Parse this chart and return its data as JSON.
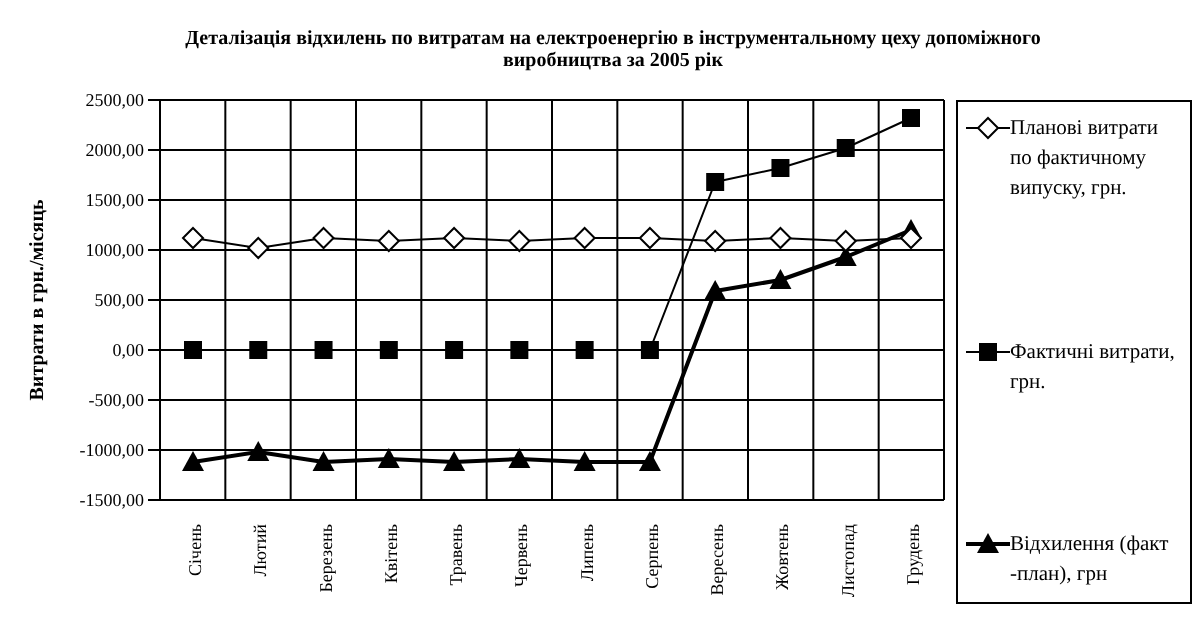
{
  "chart_data": {
    "type": "line",
    "title": "Деталізація відхилень по витратам на електроенергію в інструментальному цеху допоміжного виробництва за 2005 рік",
    "ylabel": "Витрати в грн./місяць",
    "categories": [
      "Січень",
      "Лютий",
      "Березень",
      "Квітень",
      "Травень",
      "Червень",
      "Липень",
      "Серпень",
      "Вересень",
      "Жовтень",
      "Листопад",
      "Грудень"
    ],
    "series": [
      {
        "name": "Планові витрати по фактичному випуску, грн.",
        "color": "#000000",
        "marker": "diamond",
        "values": [
          1120,
          1020,
          1120,
          1090,
          1120,
          1090,
          1120,
          1120,
          1090,
          1120,
          1090,
          1120
        ]
      },
      {
        "name": "Фактичні витрати, грн.",
        "color": "#000000",
        "marker": "square",
        "values": [
          0,
          0,
          0,
          0,
          0,
          0,
          0,
          0,
          1680,
          1820,
          2020,
          2320
        ]
      },
      {
        "name": "Відхилення (факт -план), грн",
        "color": "#000000",
        "marker": "triangle",
        "values": [
          -1120,
          -1020,
          -1120,
          -1090,
          -1120,
          -1090,
          -1120,
          -1120,
          590,
          700,
          930,
          1200
        ]
      }
    ],
    "ylim": [
      -1500,
      2500
    ],
    "yticks": [
      {
        "value": -1500,
        "label": "-1500,00"
      },
      {
        "value": -1000,
        "label": "-1000,00"
      },
      {
        "value": -500,
        "label": "-500,00"
      },
      {
        "value": 0,
        "label": "0,00"
      },
      {
        "value": 500,
        "label": "500,00"
      },
      {
        "value": 1000,
        "label": "1000,00"
      },
      {
        "value": 1500,
        "label": "1500,00"
      },
      {
        "value": 2000,
        "label": "2000,00"
      },
      {
        "value": 2500,
        "label": "2500,00"
      }
    ],
    "grid": true,
    "legend": "right"
  }
}
